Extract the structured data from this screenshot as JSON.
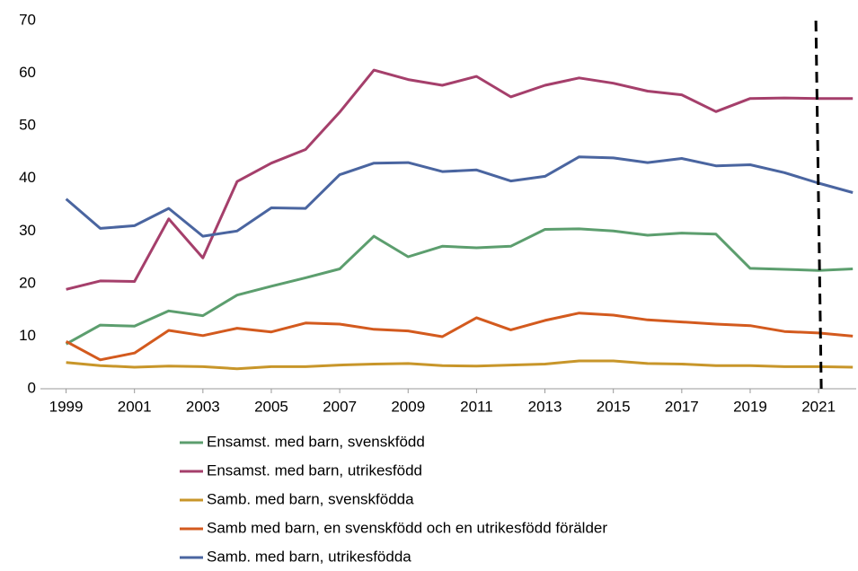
{
  "chart_data": {
    "type": "line",
    "x": [
      1999,
      2000,
      2001,
      2002,
      2003,
      2004,
      2005,
      2006,
      2007,
      2008,
      2009,
      2010,
      2011,
      2012,
      2013,
      2014,
      2015,
      2016,
      2017,
      2018,
      2019,
      2020,
      2021,
      2022
    ],
    "series": [
      {
        "name": "Ensamst. med barn, svenskfödd",
        "color": "#5c9e6e",
        "values": [
          8.5,
          12.1,
          11.9,
          14.8,
          13.9,
          17.8,
          19.5,
          21.1,
          22.8,
          29.0,
          25.1,
          27.1,
          26.8,
          27.1,
          30.3,
          30.4,
          30.0,
          29.2,
          29.6,
          29.4,
          22.9,
          22.7,
          22.5,
          22.8
        ]
      },
      {
        "name": "Ensamst. med barn, utrikesfödd",
        "color": "#a53f6b",
        "values": [
          18.9,
          20.5,
          20.4,
          32.3,
          24.9,
          39.4,
          42.9,
          45.5,
          52.6,
          60.6,
          58.8,
          57.7,
          59.4,
          55.5,
          57.7,
          59.1,
          58.1,
          56.6,
          55.9,
          52.7,
          55.2,
          55.3,
          55.2,
          55.2
        ]
      },
      {
        "name": "Samb. med barn, svenskfödda",
        "color": "#c8962a",
        "values": [
          5.0,
          4.4,
          4.1,
          4.3,
          4.2,
          3.8,
          4.2,
          4.2,
          4.5,
          4.7,
          4.8,
          4.4,
          4.3,
          4.5,
          4.7,
          5.3,
          5.3,
          4.8,
          4.7,
          4.4,
          4.4,
          4.2,
          4.2,
          4.1
        ]
      },
      {
        "name": "Samb med barn, en svenskfödd och en utrikesfödd förälder",
        "color": "#d35a1e",
        "values": [
          9.0,
          5.5,
          6.8,
          11.1,
          10.1,
          11.5,
          10.8,
          12.5,
          12.3,
          11.3,
          11.0,
          9.9,
          13.5,
          11.2,
          13.0,
          14.4,
          14.0,
          13.1,
          12.7,
          12.3,
          12.0,
          10.9,
          10.6,
          10.0
        ]
      },
      {
        "name": "Samb. med barn, utrikesfödda",
        "color": "#4a65a0",
        "values": [
          36.1,
          30.5,
          31.0,
          34.3,
          29.0,
          30.0,
          34.4,
          34.3,
          40.7,
          42.9,
          43.0,
          41.3,
          41.6,
          39.5,
          40.4,
          44.1,
          43.9,
          43.0,
          43.8,
          42.4,
          42.6,
          41.1,
          39.1,
          37.3
        ]
      }
    ],
    "xlim": [
      1998.25,
      2022.1
    ],
    "xticks": [
      1999,
      2001,
      2003,
      2005,
      2007,
      2009,
      2011,
      2013,
      2015,
      2017,
      2019,
      2021
    ],
    "ylim": [
      0,
      70
    ],
    "yticks": [
      0,
      10,
      20,
      30,
      40,
      50,
      60,
      70
    ],
    "reference_line": {
      "x": 2021,
      "style": "dashed",
      "color": "#000000"
    },
    "legend": "bottom"
  }
}
